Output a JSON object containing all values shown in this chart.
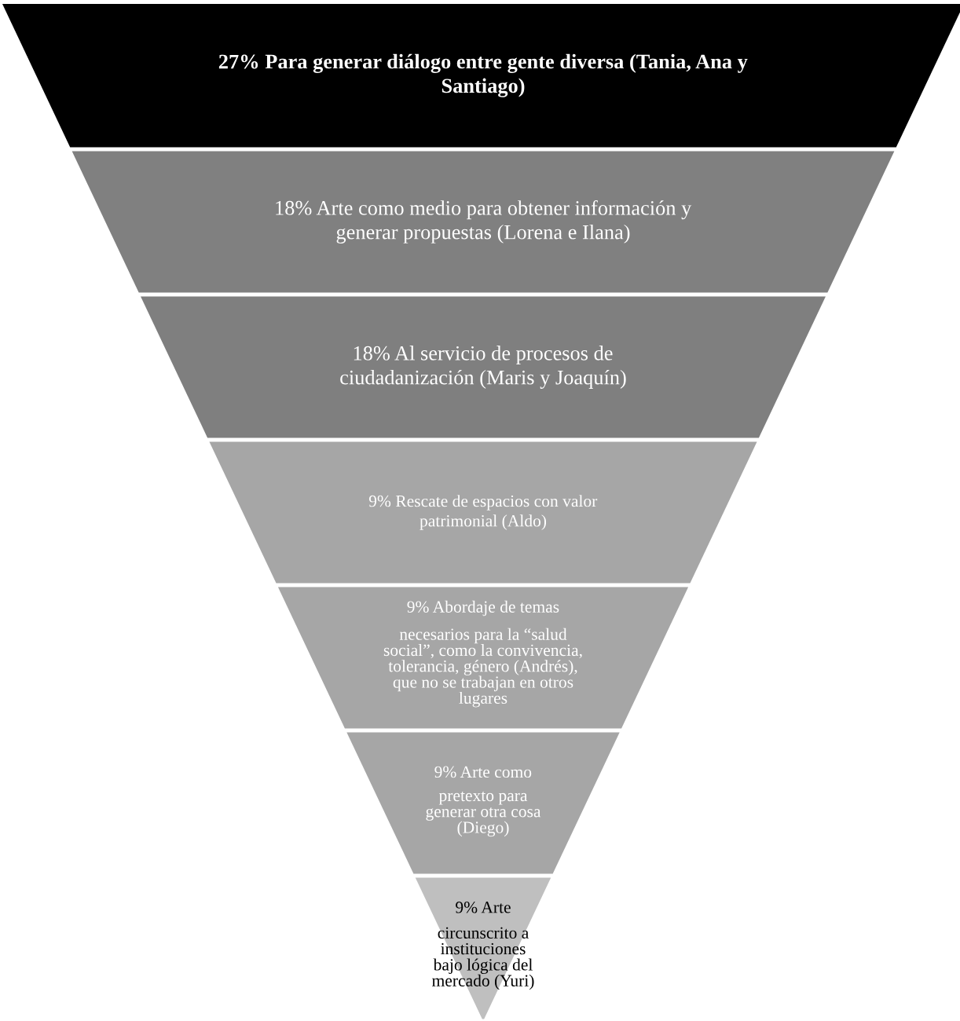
{
  "chart_data": {
    "type": "other",
    "categories": [
      "Para generar diálogo entre gente diversa (Tania, Ana y Santiago)",
      "Arte como medio para obtener información y generar propuestas (Lorena e Ilana)",
      "Al servicio de procesos de ciudadanización (Maris y Joaquín)",
      "Rescate de espacios con valor patrimonial (Aldo)",
      "Abordaje de temas necesarios para la “salud social”, como la convivencia, tolerancia, género (Andrés), que no se trabajan en otros lugares",
      "Arte como pretexto para generar otra cosa (Diego)",
      "Arte circunscrito a instituciones bajo lógica del mercado (Yuri)"
    ],
    "values": [
      27,
      18,
      18,
      9,
      9,
      9,
      9
    ],
    "value_labels": [
      "27%",
      "18%",
      "18%",
      "9%",
      "9%",
      "9%",
      "9%"
    ],
    "colors": [
      "#000000",
      "#808080",
      "#7f7f7f",
      "#a6a6a6",
      "#a6a6a6",
      "#a6a6a6",
      "#bfbfbf"
    ]
  }
}
